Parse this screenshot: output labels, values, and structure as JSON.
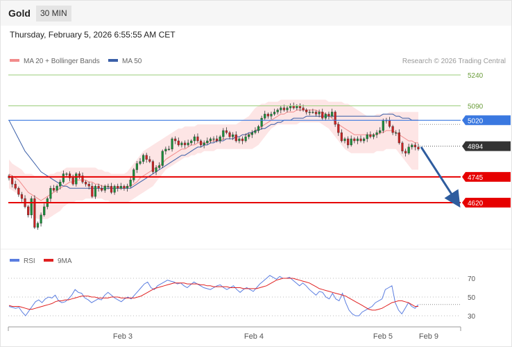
{
  "header": {
    "symbol": "Gold",
    "timeframe": "30 MIN",
    "timestamp": "Thursday, February 5, 2026 6:55:55 AM CET",
    "credit": "Research © 2026 Trading Central"
  },
  "colors": {
    "candle_up": "#1a8f3a",
    "candle_down": "#cc2222",
    "band_fill": "#fde2e2",
    "ma20": "#f28b8b",
    "ma50": "#3a5fa8",
    "support": "#e60000",
    "pivot": "#3a78e0",
    "resistance_green": "#9acd7a",
    "arrow": "#2e5c9e",
    "rsi": "#5a7de0",
    "rsi_ma": "#e02020"
  },
  "chart_data": [
    {
      "type": "candlestick",
      "title": "Gold",
      "legend": [
        "MA 20 + Bollinger Bands",
        "MA 50"
      ],
      "legend_placement": "top-left",
      "x_ticks": [
        "Feb 3",
        "Feb 4",
        "Feb 5",
        "Feb 9"
      ],
      "ylim": [
        4522,
        5282
      ],
      "levels": [
        {
          "value": 5240,
          "label": "5240",
          "kind": "resistance"
        },
        {
          "value": 5090,
          "label": "5090",
          "kind": "resistance"
        },
        {
          "value": 5020,
          "label": "5020",
          "kind": "pivot"
        },
        {
          "value": 4894,
          "label": "4894",
          "kind": "last"
        },
        {
          "value": 4745,
          "label": "4745",
          "kind": "support"
        },
        {
          "value": 4620,
          "label": "4620",
          "kind": "support"
        }
      ],
      "projection": {
        "from": 4890,
        "to": 4630
      },
      "close": [
        4740,
        4710,
        4690,
        4660,
        4640,
        4600,
        4560,
        4640,
        4500,
        4520,
        4560,
        4600,
        4640,
        4690,
        4680,
        4700,
        4720,
        4760,
        4760,
        4740,
        4710,
        4760,
        4750,
        4720,
        4710,
        4700,
        4650,
        4700,
        4690,
        4680,
        4700,
        4700,
        4670,
        4700,
        4690,
        4700,
        4690,
        4700,
        4730,
        4780,
        4810,
        4820,
        4850,
        4830,
        4820,
        4770,
        4790,
        4800,
        4870,
        4880,
        4880,
        4930,
        4920,
        4900,
        4910,
        4900,
        4910,
        4920,
        4940,
        4920,
        4900,
        4910,
        4920,
        4930,
        4930,
        4920,
        4940,
        4970,
        4960,
        4940,
        4950,
        4920,
        4930,
        4920,
        4940,
        4950,
        4960,
        4970,
        4990,
        5030,
        5050,
        5040,
        5050,
        5060,
        5070,
        5080,
        5070,
        5080,
        5090,
        5080,
        5090,
        5080,
        5070,
        5060,
        5060,
        5060,
        5050,
        5060,
        5030,
        5050,
        5040,
        5060,
        5000,
        4960,
        4920,
        4930,
        4900,
        4930,
        4920,
        4930,
        4920,
        4930,
        4950,
        4940,
        4950,
        4960,
        4970,
        5020,
        5020,
        4990,
        4960,
        4960,
        4910,
        4870,
        4860,
        4890,
        4900,
        4890,
        4880
      ],
      "ma20": [
        4760,
        4750,
        4740,
        4730,
        4710,
        4690,
        4670,
        4660,
        4650,
        4640,
        4630,
        4640,
        4650,
        4660,
        4670,
        4680,
        4690,
        4700,
        4710,
        4720,
        4720,
        4730,
        4730,
        4730,
        4730,
        4720,
        4720,
        4710,
        4710,
        4700,
        4700,
        4700,
        4690,
        4690,
        4690,
        4690,
        4690,
        4700,
        4700,
        4710,
        4720,
        4740,
        4750,
        4760,
        4770,
        4780,
        4790,
        4800,
        4810,
        4830,
        4840,
        4850,
        4860,
        4870,
        4880,
        4880,
        4890,
        4900,
        4900,
        4910,
        4910,
        4910,
        4910,
        4920,
        4920,
        4920,
        4920,
        4930,
        4930,
        4930,
        4930,
        4940,
        4940,
        4950,
        4950,
        4950,
        4960,
        4970,
        4980,
        4990,
        5000,
        5010,
        5020,
        5030,
        5040,
        5050,
        5050,
        5060,
        5060,
        5060,
        5070,
        5070,
        5070,
        5070,
        5070,
        5070,
        5070,
        5060,
        5060,
        5050,
        5040,
        5030,
        5010,
        5000,
        4990,
        4980,
        4970,
        4960,
        4950,
        4950,
        4950,
        4950,
        4950,
        4950,
        4950,
        4950,
        4960,
        4960,
        4970,
        4970,
        4970,
        4960,
        4950,
        4940,
        4930,
        4920,
        4920,
        4910,
        4910
      ],
      "ma50": [
        5020,
        4990,
        4960,
        4930,
        4900,
        4870,
        4850,
        4830,
        4810,
        4790,
        4770,
        4760,
        4750,
        4740,
        4730,
        4720,
        4710,
        4700,
        4700,
        4690,
        4690,
        4690,
        4690,
        4690,
        4690,
        4690,
        4690,
        4690,
        4690,
        4690,
        4690,
        4690,
        4690,
        4690,
        4690,
        4690,
        4690,
        4690,
        4690,
        4700,
        4710,
        4720,
        4730,
        4740,
        4750,
        4760,
        4770,
        4780,
        4790,
        4800,
        4810,
        4820,
        4830,
        4840,
        4850,
        4850,
        4860,
        4870,
        4880,
        4890,
        4890,
        4900,
        4900,
        4910,
        4910,
        4920,
        4920,
        4920,
        4930,
        4930,
        4930,
        4940,
        4940,
        4950,
        4950,
        4960,
        4960,
        4970,
        4970,
        4980,
        4980,
        4990,
        5000,
        5000,
        5010,
        5010,
        5020,
        5020,
        5020,
        5030,
        5030,
        5030,
        5030,
        5040,
        5040,
        5040,
        5040,
        5040,
        5040,
        5040,
        5040,
        5040,
        5040,
        5040,
        5040,
        5040,
        5040,
        5040,
        5040,
        5040,
        5040,
        5040,
        5040,
        5040,
        5040,
        5040,
        5040,
        5050,
        5050,
        5050,
        5050,
        5040,
        5040,
        5030,
        5030,
        5030,
        5020,
        5020,
        5020
      ],
      "band_upper": [
        4830,
        4810,
        4800,
        4790,
        4780,
        4760,
        4760,
        4760,
        4750,
        4750,
        4750,
        4750,
        4750,
        4760,
        4760,
        4770,
        4770,
        4780,
        4790,
        4790,
        4790,
        4790,
        4790,
        4790,
        4790,
        4790,
        4790,
        4790,
        4780,
        4780,
        4770,
        4770,
        4760,
        4760,
        4760,
        4760,
        4760,
        4770,
        4790,
        4810,
        4830,
        4850,
        4870,
        4880,
        4890,
        4900,
        4910,
        4920,
        4930,
        4940,
        4950,
        4960,
        4970,
        4980,
        4980,
        4990,
        4990,
        4990,
        4990,
        5000,
        5000,
        5000,
        5000,
        5000,
        5000,
        5000,
        5000,
        5000,
        5000,
        5000,
        5000,
        5000,
        5010,
        5020,
        5030,
        5040,
        5060,
        5080,
        5090,
        5100,
        5100,
        5110,
        5110,
        5110,
        5110,
        5120,
        5120,
        5120,
        5120,
        5120,
        5120,
        5120,
        5120,
        5120,
        5120,
        5120,
        5120,
        5120,
        5120,
        5120,
        5110,
        5110,
        5110,
        5110,
        5110,
        5100,
        5100,
        5090,
        5080,
        5070,
        5060,
        5050,
        5040,
        5040,
        5040,
        5050,
        5050,
        5050,
        5050,
        5060,
        5060,
        5060,
        5060,
        5060,
        5060,
        5060,
        5060,
        5060,
        5060
      ],
      "band_lower": [
        4690,
        4680,
        4670,
        4660,
        4640,
        4620,
        4590,
        4570,
        4550,
        4540,
        4540,
        4540,
        4540,
        4550,
        4560,
        4570,
        4580,
        4600,
        4610,
        4620,
        4620,
        4630,
        4630,
        4630,
        4640,
        4640,
        4640,
        4640,
        4640,
        4640,
        4630,
        4630,
        4620,
        4620,
        4620,
        4620,
        4620,
        4620,
        4630,
        4640,
        4650,
        4660,
        4670,
        4680,
        4690,
        4700,
        4720,
        4740,
        4760,
        4780,
        4790,
        4800,
        4810,
        4820,
        4830,
        4840,
        4840,
        4850,
        4850,
        4860,
        4860,
        4870,
        4870,
        4870,
        4870,
        4880,
        4880,
        4880,
        4880,
        4880,
        4880,
        4880,
        4880,
        4880,
        4880,
        4880,
        4880,
        4890,
        4900,
        4920,
        4940,
        4960,
        4980,
        4990,
        5000,
        5000,
        5000,
        5000,
        5000,
        5000,
        5000,
        5010,
        5010,
        5010,
        5010,
        5010,
        5010,
        5010,
        5000,
        4990,
        4980,
        4960,
        4940,
        4920,
        4900,
        4880,
        4870,
        4860,
        4860,
        4860,
        4860,
        4860,
        4860,
        4860,
        4860,
        4870,
        4870,
        4870,
        4880,
        4880,
        4880,
        4880,
        4860,
        4840,
        4820,
        4800,
        4780,
        4780,
        4780
      ]
    },
    {
      "type": "line",
      "title": "RSI",
      "legend": [
        "RSI",
        "9MA"
      ],
      "legend_placement": "top-left",
      "y_ticks": [
        70,
        50,
        30
      ],
      "ylim": [
        22,
        80
      ],
      "series": [
        {
          "name": "RSI",
          "values": [
            40,
            39,
            38,
            39,
            34,
            30,
            35,
            40,
            45,
            47,
            44,
            48,
            50,
            49,
            52,
            46,
            44,
            45,
            48,
            52,
            58,
            55,
            54,
            49,
            47,
            44,
            46,
            48,
            47,
            52,
            55,
            52,
            49,
            47,
            45,
            48,
            50,
            48,
            52,
            56,
            60,
            64,
            66,
            60,
            58,
            62,
            64,
            66,
            68,
            67,
            66,
            64,
            65,
            62,
            60,
            63,
            66,
            64,
            62,
            60,
            59,
            58,
            60,
            62,
            63,
            60,
            58,
            60,
            62,
            58,
            55,
            58,
            60,
            58,
            56,
            60,
            64,
            67,
            70,
            73,
            71,
            69,
            72,
            70,
            70,
            71,
            68,
            65,
            62,
            65,
            62,
            58,
            55,
            52,
            56,
            55,
            50,
            48,
            54,
            48,
            46,
            54,
            44,
            36,
            32,
            30,
            30,
            34,
            36,
            38,
            40,
            44,
            46,
            48,
            58,
            60,
            62,
            44,
            36,
            32,
            38,
            44,
            40,
            38,
            42
          ]
        },
        {
          "name": "9MA",
          "values": [
            41,
            40,
            40,
            40,
            39,
            38,
            37,
            37,
            38,
            39,
            40,
            41,
            42,
            43,
            45,
            46,
            46,
            47,
            47,
            48,
            49,
            50,
            51,
            51,
            51,
            50,
            50,
            49,
            49,
            49,
            49,
            50,
            50,
            50,
            49,
            49,
            49,
            49,
            49,
            50,
            51,
            53,
            55,
            57,
            59,
            60,
            61,
            62,
            63,
            64,
            65,
            65,
            65,
            65,
            64,
            64,
            64,
            64,
            63,
            63,
            62,
            62,
            61,
            61,
            61,
            61,
            61,
            60,
            60,
            60,
            60,
            59,
            59,
            59,
            59,
            59,
            60,
            61,
            62,
            64,
            66,
            68,
            69,
            70,
            70,
            70,
            70,
            69,
            68,
            67,
            66,
            65,
            63,
            61,
            59,
            58,
            57,
            56,
            55,
            54,
            53,
            52,
            51,
            49,
            47,
            45,
            43,
            41,
            39,
            37,
            36,
            36,
            37,
            38,
            40,
            42,
            44,
            45,
            46,
            46,
            45,
            44,
            42,
            40,
            40
          ]
        }
      ]
    }
  ]
}
